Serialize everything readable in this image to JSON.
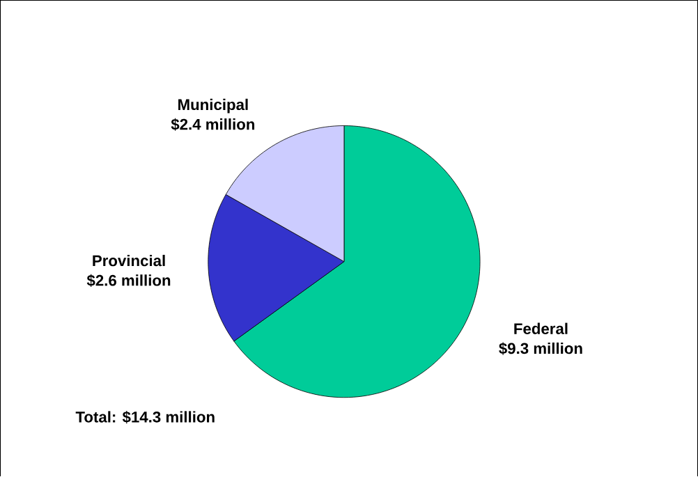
{
  "chart_data": {
    "type": "pie",
    "categories": [
      "Federal",
      "Provincial",
      "Municipal"
    ],
    "values": [
      9.3,
      2.6,
      2.4
    ],
    "value_labels": [
      "$9.3 million",
      "$2.6 million",
      "$2.4 million"
    ],
    "colors": [
      "#00cc99",
      "#3333cc",
      "#ccccff"
    ],
    "annotations": [
      "Total:  $14.3 million"
    ]
  }
}
